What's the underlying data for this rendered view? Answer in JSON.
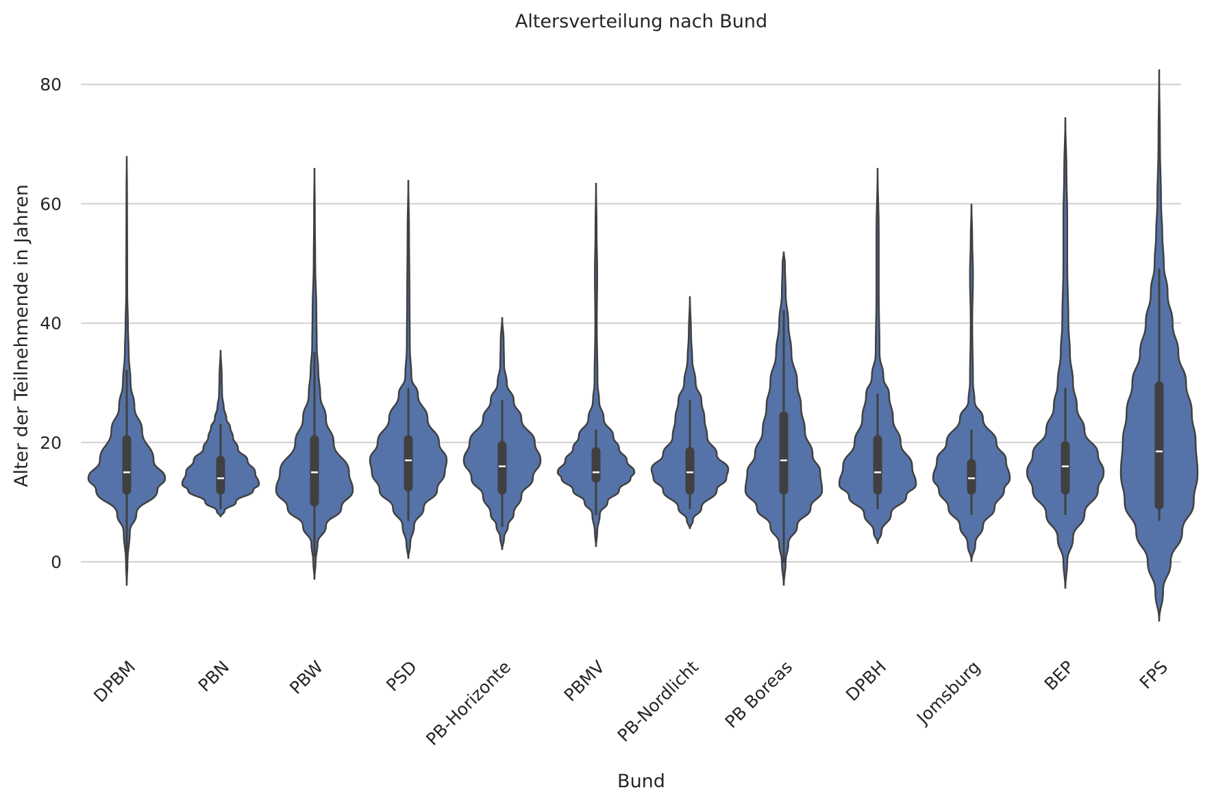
{
  "chart_data": {
    "type": "violin",
    "title": "Altersverteilung nach Bund",
    "xlabel": "Bund",
    "ylabel": "Alter der Teilnehmende in Jahren",
    "ylim": [
      -14,
      86
    ],
    "yticks": [
      0,
      20,
      40,
      60,
      80
    ],
    "grid": "horizontal",
    "colors": {
      "violin": "#5573a8",
      "outline": "#404040",
      "median": "#ffffff",
      "grid": "#cfcfcf"
    },
    "categories": [
      "DPBM",
      "PBN",
      "PBW",
      "PSD",
      "PB-Horizonte",
      "PBMV",
      "PB-Nordlicht",
      "PB Boreas",
      "DPBH",
      "Jomsburg",
      "BEP",
      "FPS"
    ],
    "groups": [
      {
        "name": "DPBM",
        "min": -4,
        "max": 68,
        "q1": 12,
        "median": 15,
        "q3": 20.5,
        "whisker_low": 0,
        "whisker_high": 32,
        "profile": [
          [
            -4,
            0
          ],
          [
            0,
            0.02
          ],
          [
            5,
            0.08
          ],
          [
            8,
            0.25
          ],
          [
            12,
            0.8
          ],
          [
            14,
            1.0
          ],
          [
            17,
            0.7
          ],
          [
            22,
            0.4
          ],
          [
            26,
            0.2
          ],
          [
            30,
            0.1
          ],
          [
            35,
            0.05
          ],
          [
            40,
            0.03
          ],
          [
            45,
            0.015
          ],
          [
            55,
            0.01
          ],
          [
            62,
            0.008
          ],
          [
            68,
            0
          ]
        ]
      },
      {
        "name": "PBN",
        "min": 7.5,
        "max": 35.5,
        "q1": 12,
        "median": 14,
        "q3": 17,
        "whisker_low": 9,
        "whisker_high": 23,
        "profile": [
          [
            7.5,
            0
          ],
          [
            8.5,
            0.1
          ],
          [
            10,
            0.4
          ],
          [
            12,
            0.85
          ],
          [
            13,
            1.0
          ],
          [
            15,
            0.9
          ],
          [
            17,
            0.7
          ],
          [
            19,
            0.45
          ],
          [
            21,
            0.32
          ],
          [
            22.5,
            0.25
          ],
          [
            24,
            0.15
          ],
          [
            26,
            0.08
          ],
          [
            28,
            0.04
          ],
          [
            31,
            0.03
          ],
          [
            35.5,
            0
          ]
        ]
      },
      {
        "name": "PBW",
        "min": -3,
        "max": 66,
        "q1": 10,
        "median": 15,
        "q3": 20.5,
        "whisker_low": 1,
        "whisker_high": 35,
        "profile": [
          [
            -3,
            0
          ],
          [
            0,
            0.03
          ],
          [
            3,
            0.08
          ],
          [
            6,
            0.3
          ],
          [
            9,
            0.7
          ],
          [
            12,
            1.0
          ],
          [
            15,
            0.9
          ],
          [
            20,
            0.5
          ],
          [
            24,
            0.3
          ],
          [
            28,
            0.15
          ],
          [
            32,
            0.1
          ],
          [
            36,
            0.06
          ],
          [
            42,
            0.05
          ],
          [
            50,
            0.02
          ],
          [
            58,
            0.01
          ],
          [
            66,
            0
          ]
        ]
      },
      {
        "name": "PSD",
        "min": 0.5,
        "max": 64,
        "q1": 12.5,
        "median": 17,
        "q3": 20.5,
        "whisker_low": 7,
        "whisker_high": 29,
        "profile": [
          [
            0.5,
            0
          ],
          [
            3,
            0.05
          ],
          [
            6,
            0.15
          ],
          [
            9,
            0.4
          ],
          [
            12,
            0.75
          ],
          [
            15,
            0.95
          ],
          [
            17,
            1.0
          ],
          [
            20,
            0.8
          ],
          [
            24,
            0.5
          ],
          [
            28,
            0.25
          ],
          [
            31,
            0.08
          ],
          [
            36,
            0.04
          ],
          [
            45,
            0.03
          ],
          [
            55,
            0.02
          ],
          [
            64,
            0
          ]
        ]
      },
      {
        "name": "PB-Horizonte",
        "min": 2,
        "max": 41,
        "q1": 12,
        "median": 16,
        "q3": 19.5,
        "whisker_low": 6,
        "whisker_high": 27,
        "profile": [
          [
            2,
            0
          ],
          [
            4,
            0.05
          ],
          [
            6,
            0.15
          ],
          [
            8,
            0.3
          ],
          [
            11,
            0.5
          ],
          [
            14,
            0.8
          ],
          [
            17,
            1.0
          ],
          [
            20,
            0.85
          ],
          [
            24,
            0.5
          ],
          [
            27,
            0.3
          ],
          [
            30,
            0.12
          ],
          [
            33,
            0.05
          ],
          [
            37,
            0.04
          ],
          [
            41,
            0
          ]
        ]
      },
      {
        "name": "PBMV",
        "min": 2.5,
        "max": 63.5,
        "q1": 14,
        "median": 15,
        "q3": 18.5,
        "whisker_low": 8,
        "whisker_high": 22,
        "profile": [
          [
            2.5,
            0
          ],
          [
            5,
            0.03
          ],
          [
            8,
            0.1
          ],
          [
            10,
            0.3
          ],
          [
            12,
            0.6
          ],
          [
            14,
            0.9
          ],
          [
            15,
            1.0
          ],
          [
            17,
            0.8
          ],
          [
            19,
            0.6
          ],
          [
            21,
            0.45
          ],
          [
            24,
            0.2
          ],
          [
            27,
            0.08
          ],
          [
            30,
            0.04
          ],
          [
            40,
            0.02
          ],
          [
            48,
            0.03
          ],
          [
            56,
            0.015
          ],
          [
            63.5,
            0
          ]
        ]
      },
      {
        "name": "PB-Nordlicht",
        "min": 5.5,
        "max": 44.5,
        "q1": 12,
        "median": 15,
        "q3": 18.5,
        "whisker_low": 9,
        "whisker_high": 27,
        "profile": [
          [
            5.5,
            0
          ],
          [
            7,
            0.08
          ],
          [
            9,
            0.3
          ],
          [
            12,
            0.7
          ],
          [
            14,
            0.95
          ],
          [
            15.5,
            1.0
          ],
          [
            18,
            0.7
          ],
          [
            21,
            0.45
          ],
          [
            24,
            0.38
          ],
          [
            27,
            0.3
          ],
          [
            30,
            0.15
          ],
          [
            34,
            0.06
          ],
          [
            38,
            0.03
          ],
          [
            44.5,
            0
          ]
        ]
      },
      {
        "name": "PB Boreas",
        "min": -4,
        "max": 52,
        "q1": 12,
        "median": 17,
        "q3": 24.5,
        "whisker_low": 0,
        "whisker_high": 42,
        "profile": [
          [
            -4,
            0
          ],
          [
            0,
            0.05
          ],
          [
            3,
            0.12
          ],
          [
            6,
            0.35
          ],
          [
            9,
            0.7
          ],
          [
            12,
            1.0
          ],
          [
            15,
            0.95
          ],
          [
            18,
            0.75
          ],
          [
            22,
            0.55
          ],
          [
            26,
            0.45
          ],
          [
            30,
            0.35
          ],
          [
            35,
            0.2
          ],
          [
            40,
            0.12
          ],
          [
            45,
            0.05
          ],
          [
            50,
            0.03
          ],
          [
            52,
            0
          ]
        ]
      },
      {
        "name": "DPBH",
        "min": 3,
        "max": 66,
        "q1": 12,
        "median": 15,
        "q3": 20.5,
        "whisker_low": 9,
        "whisker_high": 28,
        "profile": [
          [
            3,
            0
          ],
          [
            5,
            0.1
          ],
          [
            8,
            0.35
          ],
          [
            11,
            0.75
          ],
          [
            13,
            1.0
          ],
          [
            16,
            0.9
          ],
          [
            20,
            0.6
          ],
          [
            24,
            0.4
          ],
          [
            28,
            0.3
          ],
          [
            31,
            0.15
          ],
          [
            35,
            0.05
          ],
          [
            45,
            0.03
          ],
          [
            55,
            0.03
          ],
          [
            66,
            0
          ]
        ]
      },
      {
        "name": "Jomsburg",
        "min": 0,
        "max": 60,
        "q1": 12,
        "median": 14,
        "q3": 16.5,
        "whisker_low": 8,
        "whisker_high": 22,
        "profile": [
          [
            0,
            0
          ],
          [
            3,
            0.1
          ],
          [
            6,
            0.3
          ],
          [
            9,
            0.6
          ],
          [
            12,
            0.85
          ],
          [
            14,
            1.0
          ],
          [
            17,
            0.9
          ],
          [
            20,
            0.65
          ],
          [
            24,
            0.3
          ],
          [
            27,
            0.08
          ],
          [
            30,
            0.04
          ],
          [
            40,
            0.02
          ],
          [
            48,
            0.04
          ],
          [
            54,
            0.02
          ],
          [
            60,
            0
          ]
        ]
      },
      {
        "name": "BEP",
        "min": -4.5,
        "max": 74.5,
        "q1": 12,
        "median": 16,
        "q3": 19.5,
        "whisker_low": 8,
        "whisker_high": 29,
        "profile": [
          [
            -4.5,
            0
          ],
          [
            0,
            0.05
          ],
          [
            4,
            0.2
          ],
          [
            8,
            0.5
          ],
          [
            12,
            0.85
          ],
          [
            15,
            1.0
          ],
          [
            18,
            0.85
          ],
          [
            22,
            0.5
          ],
          [
            26,
            0.3
          ],
          [
            30,
            0.2
          ],
          [
            35,
            0.12
          ],
          [
            40,
            0.08
          ],
          [
            50,
            0.05
          ],
          [
            58,
            0.05
          ],
          [
            65,
            0.03
          ],
          [
            74.5,
            0
          ]
        ]
      },
      {
        "name": "FPS",
        "min": -10,
        "max": 82.5,
        "q1": 9.5,
        "median": 18.5,
        "q3": 29.5,
        "whisker_low": 7,
        "whisker_high": 49,
        "profile": [
          [
            -10,
            0
          ],
          [
            -5,
            0.1
          ],
          [
            0,
            0.3
          ],
          [
            5,
            0.6
          ],
          [
            10,
            0.9
          ],
          [
            15,
            1.0
          ],
          [
            20,
            0.95
          ],
          [
            25,
            0.85
          ],
          [
            30,
            0.7
          ],
          [
            35,
            0.5
          ],
          [
            40,
            0.35
          ],
          [
            45,
            0.22
          ],
          [
            50,
            0.12
          ],
          [
            55,
            0.08
          ],
          [
            60,
            0.05
          ],
          [
            70,
            0.02
          ],
          [
            82.5,
            0
          ]
        ]
      }
    ]
  }
}
